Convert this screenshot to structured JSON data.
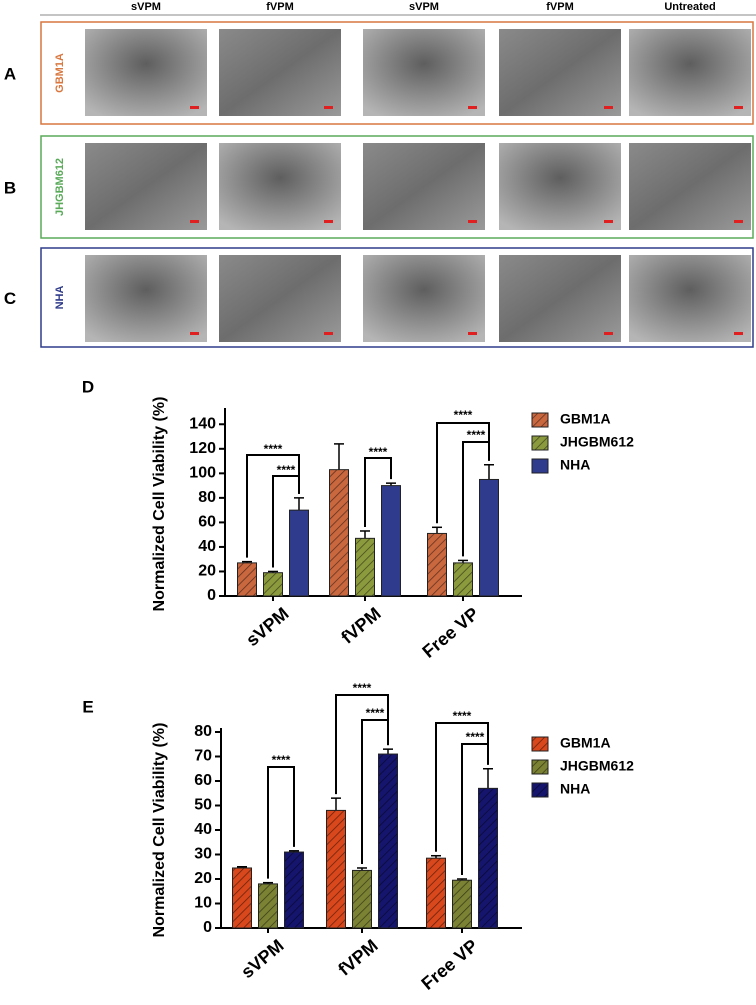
{
  "columns": [
    "sVPM",
    "fVPM",
    "sVPM",
    "fVPM",
    "Untreated"
  ],
  "rows": [
    {
      "panel": "A",
      "label": "GBM1A"
    },
    {
      "panel": "B",
      "label": "JHGBM612"
    },
    {
      "panel": "C",
      "label": "NHA"
    }
  ],
  "chart_data": [
    {
      "type": "bar",
      "panel": "D",
      "y_label": "Normalized Cell Viability (%)",
      "categories": [
        "sVPM",
        "fVPM",
        "Free VP"
      ],
      "series": [
        {
          "name": "GBM1A",
          "color": "#c9673f",
          "hatch": true,
          "values": [
            27,
            103,
            51
          ],
          "errors": [
            1,
            21,
            5
          ]
        },
        {
          "name": "JHGBM612",
          "color": "#8c9a3e",
          "hatch": true,
          "values": [
            19,
            47,
            27
          ],
          "errors": [
            1,
            6,
            2
          ]
        },
        {
          "name": "NHA",
          "color": "#2f3b8c",
          "hatch": false,
          "values": [
            70,
            90,
            95
          ],
          "errors": [
            10,
            2,
            12
          ]
        }
      ],
      "ylim": [
        0,
        150
      ],
      "yticks": [
        0,
        20,
        40,
        60,
        80,
        100,
        120,
        140
      ],
      "annotations": [
        "****",
        "****",
        "****",
        "****",
        "****"
      ]
    },
    {
      "type": "bar",
      "panel": "E",
      "y_label": "Normalized Cell Viability (%)",
      "categories": [
        "sVPM",
        "fVPM",
        "Free VP"
      ],
      "series": [
        {
          "name": "GBM1A",
          "color": "#d9471c",
          "hatch": true,
          "values": [
            24.5,
            48,
            28.5
          ],
          "errors": [
            0.5,
            5,
            1
          ]
        },
        {
          "name": "JHGBM612",
          "color": "#7b8233",
          "hatch": true,
          "values": [
            18,
            23.5,
            19.5
          ],
          "errors": [
            0.5,
            1,
            0.5
          ]
        },
        {
          "name": "NHA",
          "color": "#15156e",
          "hatch": true,
          "values": [
            31,
            71,
            57
          ],
          "errors": [
            0.5,
            2,
            8
          ]
        }
      ],
      "ylim": [
        0,
        80
      ],
      "yticks": [
        0,
        10,
        20,
        30,
        40,
        50,
        60,
        70,
        80
      ],
      "annotations": [
        "****",
        "****",
        "****",
        "****",
        "****"
      ]
    }
  ]
}
